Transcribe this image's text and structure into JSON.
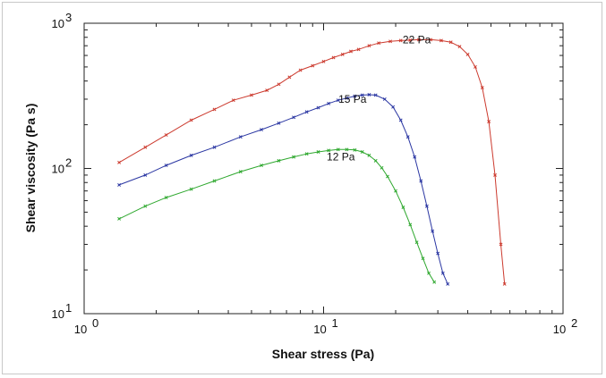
{
  "chart_data": {
    "type": "line",
    "title": "",
    "xlabel": "Shear stress (Pa)",
    "ylabel": "Shear viscosity (Pa s)",
    "xscale": "log",
    "yscale": "log",
    "xlim": [
      1,
      100
    ],
    "ylim": [
      10,
      1000
    ],
    "grid": false,
    "x_ticks": [
      {
        "value": 1,
        "base": "10",
        "exp": "0"
      },
      {
        "value": 10,
        "base": "10",
        "exp": "1"
      },
      {
        "value": 100,
        "base": "10",
        "exp": "2"
      }
    ],
    "y_ticks": [
      {
        "value": 10,
        "base": "10",
        "exp": "1"
      },
      {
        "value": 100,
        "base": "10",
        "exp": "2"
      },
      {
        "value": 1000,
        "base": "10",
        "exp": "3"
      }
    ],
    "series": [
      {
        "name": "22 Pa",
        "color": "#cc3a2e",
        "label_at": [
          24.5,
          770
        ],
        "x": [
          1.4,
          1.8,
          2.2,
          2.8,
          3.5,
          4.2,
          5.0,
          5.8,
          6.5,
          7.2,
          8.0,
          9.0,
          10.0,
          11.0,
          12.0,
          13.0,
          14.0,
          15.5,
          17.0,
          19.0,
          21.0,
          23.0,
          25.0,
          28.0,
          31.0,
          34.0,
          37.0,
          40.0,
          43.0,
          46.0,
          49.0,
          52.0,
          55.0,
          57.0
        ],
        "y": [
          110,
          140,
          170,
          215,
          255,
          295,
          320,
          345,
          380,
          425,
          475,
          510,
          545,
          580,
          610,
          640,
          660,
          700,
          730,
          750,
          760,
          765,
          770,
          770,
          760,
          740,
          690,
          610,
          500,
          360,
          210,
          90,
          30,
          16
        ]
      },
      {
        "name": "15 Pa",
        "color": "#2a36a2",
        "label_at": [
          13.2,
          300
        ],
        "x": [
          1.4,
          1.8,
          2.2,
          2.8,
          3.5,
          4.5,
          5.5,
          6.5,
          7.5,
          8.5,
          9.5,
          10.5,
          11.5,
          12.5,
          13.5,
          14.5,
          15.5,
          16.5,
          18.0,
          19.5,
          21.0,
          22.5,
          24.0,
          25.5,
          27.0,
          28.5,
          30.0,
          31.5,
          33.0
        ],
        "y": [
          77,
          90,
          105,
          123,
          140,
          165,
          185,
          205,
          225,
          245,
          262,
          280,
          295,
          305,
          315,
          320,
          322,
          320,
          300,
          265,
          215,
          165,
          120,
          82,
          55,
          37,
          26,
          19,
          16
        ]
      },
      {
        "name": "12 Pa",
        "color": "#2fa82f",
        "label_at": [
          11.8,
          120
        ],
        "x": [
          1.4,
          1.8,
          2.2,
          2.8,
          3.5,
          4.5,
          5.5,
          6.5,
          7.5,
          8.5,
          9.5,
          10.5,
          11.5,
          12.5,
          13.5,
          14.5,
          15.5,
          16.5,
          17.5,
          18.5,
          20.0,
          21.5,
          23.0,
          24.5,
          26.0,
          27.5,
          29.0
        ],
        "y": [
          45,
          55,
          63,
          72,
          82,
          95,
          105,
          113,
          120,
          126,
          130,
          133,
          135,
          135,
          134,
          130,
          123,
          113,
          101,
          88,
          70,
          54,
          41,
          31,
          24,
          19,
          16.5
        ]
      }
    ]
  }
}
